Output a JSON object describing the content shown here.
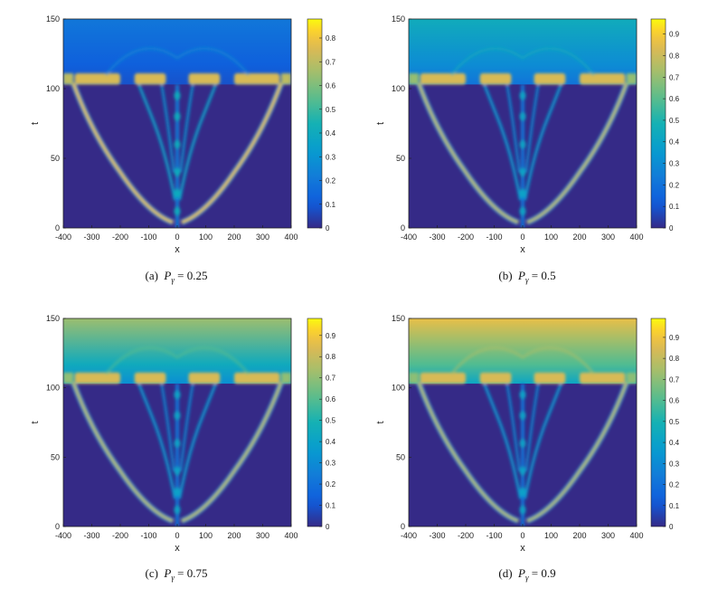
{
  "chart_data": [
    {
      "type": "heatmap",
      "panel_label": "(a)",
      "caption_symbol": "P",
      "caption_subscript": "γ",
      "caption_value": "= 0.25",
      "xlabel": "x",
      "ylabel": "t",
      "xlim": [
        -400,
        400
      ],
      "ylim": [
        0,
        150
      ],
      "x_ticks": [
        -400,
        -300,
        -200,
        -100,
        0,
        100,
        200,
        300,
        400
      ],
      "y_ticks": [
        0,
        50,
        100,
        150
      ],
      "colorbar_ticks": [
        0,
        0.1,
        0.2,
        0.3,
        0.4,
        0.5,
        0.6,
        0.7,
        0.8
      ],
      "colorbar_max": 0.88,
      "background_level_top": 0.2,
      "background_level_mid": 0.12,
      "colormap": "parula"
    },
    {
      "type": "heatmap",
      "panel_label": "(b)",
      "caption_symbol": "P",
      "caption_subscript": "γ",
      "caption_value": "= 0.5",
      "xlabel": "x",
      "ylabel": "t",
      "xlim": [
        -400,
        400
      ],
      "ylim": [
        0,
        150
      ],
      "x_ticks": [
        -400,
        -300,
        -200,
        -100,
        0,
        100,
        200,
        300,
        400
      ],
      "y_ticks": [
        0,
        50,
        100,
        150
      ],
      "colorbar_ticks": [
        0,
        0.1,
        0.2,
        0.3,
        0.4,
        0.5,
        0.6,
        0.7,
        0.8,
        0.9
      ],
      "colorbar_max": 0.97,
      "background_level_top": 0.45,
      "background_level_mid": 0.3,
      "colormap": "parula"
    },
    {
      "type": "heatmap",
      "panel_label": "(c)",
      "caption_symbol": "P",
      "caption_subscript": "γ",
      "caption_value": "= 0.75",
      "xlabel": "x",
      "ylabel": "t",
      "xlim": [
        -400,
        400
      ],
      "ylim": [
        0,
        150
      ],
      "x_ticks": [
        -400,
        -300,
        -200,
        -100,
        0,
        100,
        200,
        300,
        400
      ],
      "y_ticks": [
        0,
        50,
        100,
        150
      ],
      "colorbar_ticks": [
        0,
        0.1,
        0.2,
        0.3,
        0.4,
        0.5,
        0.6,
        0.7,
        0.8,
        0.9
      ],
      "colorbar_max": 0.98,
      "background_level_top": 0.72,
      "background_level_mid": 0.45,
      "colormap": "parula"
    },
    {
      "type": "heatmap",
      "panel_label": "(d)",
      "caption_symbol": "P",
      "caption_subscript": "γ",
      "caption_value": "= 0.9",
      "xlabel": "x",
      "ylabel": "t",
      "xlim": [
        -400,
        400
      ],
      "ylim": [
        0,
        150
      ],
      "x_ticks": [
        -400,
        -300,
        -200,
        -100,
        0,
        100,
        200,
        300,
        400
      ],
      "y_ticks": [
        0,
        50,
        100,
        150
      ],
      "colorbar_ticks": [
        0,
        0.1,
        0.2,
        0.3,
        0.4,
        0.5,
        0.6,
        0.7,
        0.8,
        0.9
      ],
      "colorbar_max": 0.99,
      "background_level_top": 0.88,
      "background_level_mid": 0.6,
      "colormap": "parula"
    }
  ],
  "colors": {
    "axis": "#222222",
    "background_low": "#352a87",
    "peak": "#f9fb0e"
  }
}
